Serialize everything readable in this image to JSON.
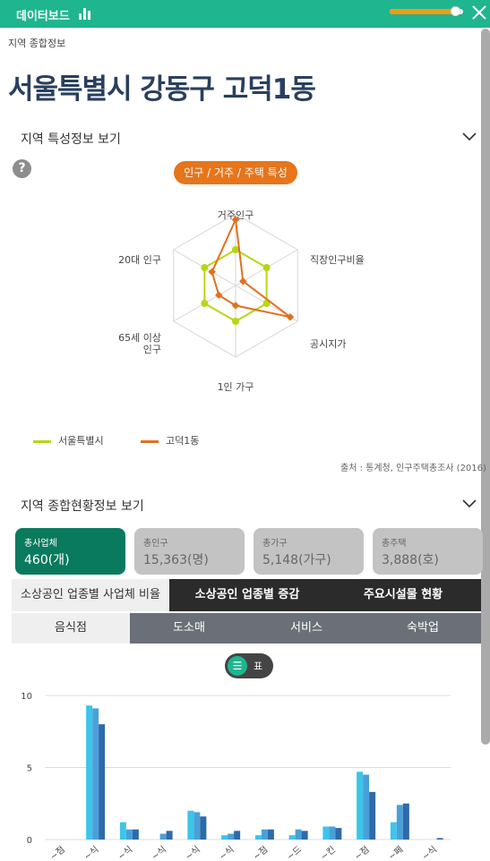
{
  "topbar": {
    "title": "데이터보드",
    "progress": 0.9
  },
  "breadcrumb": "지역 종합정보",
  "page_title": "서울특별시 강동구 고덕1동",
  "section1": {
    "title": "지역 특성정보 보기",
    "help": "?",
    "pill": "인구 / 거주 / 주택 특성",
    "radar": {
      "axes": [
        "거주인구",
        "직장인구비율",
        "공시지가",
        "1인 가구",
        "65세 이상 인구",
        "20대 인구"
      ],
      "axis_lines": [
        [
          "거주인구"
        ],
        [
          "직장인구비율"
        ],
        [
          "공시지가"
        ],
        [
          "1인 가구"
        ],
        [
          "65세 이상",
          "인구"
        ],
        [
          "20대 인구"
        ]
      ],
      "series": [
        {
          "name": "서울특별시",
          "color": "#b5d715",
          "values": [
            0.5,
            0.5,
            0.5,
            0.5,
            0.5,
            0.5
          ]
        },
        {
          "name": "고덕1동",
          "color": "#e07020",
          "values": [
            0.92,
            0.12,
            0.88,
            0.28,
            0.27,
            0.38
          ]
        }
      ]
    },
    "source": "출처 : 통계청, 인구주택총조사 (2016)"
  },
  "section2": {
    "title": "지역 종합현황정보 보기",
    "cards": [
      {
        "label": "총사업체",
        "value": "460(개)"
      },
      {
        "label": "총인구",
        "value": "15,363(명)"
      },
      {
        "label": "총가구",
        "value": "5,148(가구)"
      },
      {
        "label": "총주택",
        "value": "3,888(호)"
      }
    ],
    "tabs": [
      "소상공인 업종별 사업체 비율",
      "소상공인 업종별 증감",
      "주요시설물 현황"
    ],
    "subtabs": [
      "음식점",
      "도소매",
      "서비스",
      "숙박업"
    ],
    "toggle_label": "표"
  },
  "chart_data": {
    "type": "bar",
    "ylim": [
      0,
      10
    ],
    "yticks": [
      0,
      5,
      10
    ],
    "categories": [
      "~점",
      "~식",
      "~식",
      "~식",
      "~식",
      "~식",
      "~점",
      "~드",
      "~킨",
      "~점",
      "~페",
      "~식"
    ],
    "series": [
      {
        "color": "#3cc5ea",
        "values": [
          0,
          9.3,
          1.2,
          0,
          2.0,
          0.3,
          0.3,
          0.3,
          0.9,
          4.7,
          1.2,
          0
        ]
      },
      {
        "color": "#4b9fd8",
        "values": [
          0,
          9.1,
          0.7,
          0.4,
          1.9,
          0.4,
          0.7,
          0.7,
          0.9,
          4.5,
          2.4,
          0
        ]
      },
      {
        "color": "#2f6aa8",
        "values": [
          0,
          8.0,
          0.7,
          0.6,
          1.6,
          0.6,
          0.7,
          0.6,
          0.8,
          3.3,
          2.5,
          0.1
        ]
      }
    ]
  }
}
